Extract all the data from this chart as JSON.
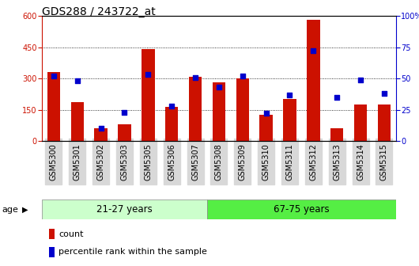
{
  "title": "GDS288 / 243722_at",
  "samples": [
    "GSM5300",
    "GSM5301",
    "GSM5302",
    "GSM5303",
    "GSM5305",
    "GSM5306",
    "GSM5307",
    "GSM5308",
    "GSM5309",
    "GSM5310",
    "GSM5311",
    "GSM5312",
    "GSM5313",
    "GSM5314",
    "GSM5315"
  ],
  "counts": [
    330,
    185,
    60,
    80,
    440,
    163,
    308,
    280,
    300,
    125,
    200,
    580,
    60,
    175,
    175
  ],
  "percentiles": [
    52,
    48,
    10,
    23,
    53,
    28,
    51,
    43,
    52,
    22,
    37,
    72,
    35,
    49,
    38
  ],
  "group1_label": "21-27 years",
  "group2_label": "67-75 years",
  "group1_count": 7,
  "group2_count": 8,
  "ylim_left": [
    0,
    600
  ],
  "ylim_right": [
    0,
    100
  ],
  "yticks_left": [
    0,
    150,
    300,
    450,
    600
  ],
  "yticks_right": [
    0,
    25,
    50,
    75,
    100
  ],
  "bar_color": "#cc1100",
  "dot_color": "#0000cc",
  "group1_bg": "#ccffcc",
  "group2_bg": "#55ee44",
  "age_label": "age",
  "legend_count": "count",
  "legend_percentile": "percentile rank within the sample",
  "title_fontsize": 10,
  "tick_fontsize": 7,
  "bar_width": 0.55,
  "fig_bg": "#f0f0f0"
}
